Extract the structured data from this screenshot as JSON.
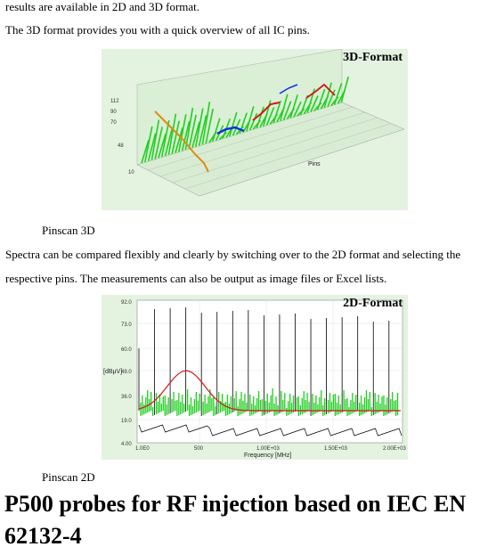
{
  "paragraphs": {
    "p0": "results are available in 2D and 3D format.",
    "p1": "The 3D format provides you with a quick overview of all IC pins.",
    "p2": "Spectra can be compared flexibly and clearly by switching over to the 2D format and selecting the",
    "p3": "respective pins. The measurements can also be output as image files or Excel lists."
  },
  "figure3d": {
    "title": "3D-Format",
    "caption": "Pinscan 3D",
    "axis_label_pins": "Pins"
  },
  "figure2d": {
    "title": "2D-Format",
    "caption": "Pinscan 2D",
    "ylabel": "[dBµV]",
    "xlabel": "Frequency [MHz]",
    "yticks": [
      "92.0",
      "73.0",
      "60.0",
      "49.0",
      "36.0",
      "19.0",
      "4.00"
    ],
    "xticks": [
      "1.0E0",
      "500",
      "1.00E+03",
      "1.50E+03",
      "2.00E+03"
    ]
  },
  "heading": "P500 probes for RF injection based on IEC EN 62132-4",
  "colors": {
    "figure_bg": "#e4f2e0",
    "spectrum_green": "#1fd01f",
    "spectrum_red": "#d01818",
    "spectrum_black": "#000000",
    "spectrum_blue": "#1030e0",
    "spectrum_orange": "#e08a10"
  }
}
